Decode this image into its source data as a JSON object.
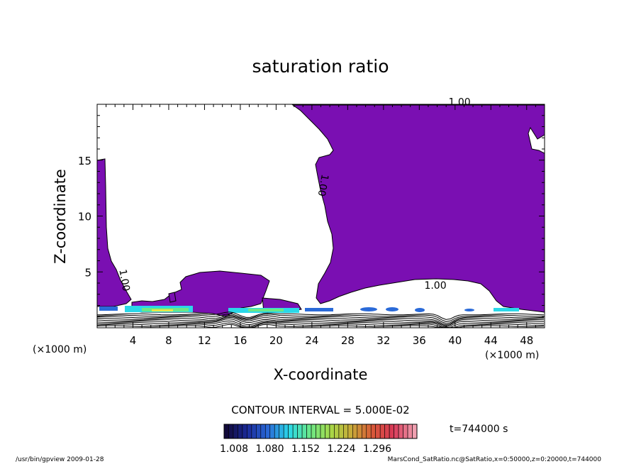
{
  "chart_data": {
    "type": "contour",
    "title": "saturation ratio",
    "xlabel": "X-coordinate",
    "ylabel": "Z-coordinate",
    "x_unit": "(×1000 m)",
    "x_unit_right": "(×1000 m)",
    "y_unit": "(×1000 m)",
    "xlim": [
      0,
      50
    ],
    "ylim": [
      0,
      20
    ],
    "xticks": [
      4,
      8,
      12,
      16,
      20,
      24,
      28,
      32,
      36,
      40,
      44,
      48
    ],
    "yticks": [
      5,
      10,
      15
    ],
    "contour_interval_text": "CONTOUR INTERVAL = 5.000E-02",
    "contour_labels": [
      {
        "text": "1.00",
        "x": 40.5,
        "z": 19.9
      },
      {
        "text": "1.00",
        "x": 24.9,
        "z": 12.8
      },
      {
        "text": "1.00",
        "x": 37.8,
        "z": 3.5
      },
      {
        "text": "1.00",
        "x": 2.7,
        "z": 4.2
      }
    ],
    "colorbar": {
      "ticks": [
        "1.008",
        "1.080",
        "1.152",
        "1.224",
        "1.296"
      ],
      "min": 1.008,
      "max": 1.296,
      "colors": [
        "#120a3a",
        "#1a2a9a",
        "#2a6ad8",
        "#2ad8e8",
        "#6ae888",
        "#a8d848",
        "#c8a838",
        "#d85838",
        "#d83858",
        "#f0a0b0"
      ]
    },
    "time_label": "t=744000 s",
    "series": [
      {
        "name": "1.00",
        "values": [
          1.0
        ]
      }
    ]
  },
  "footer": {
    "left": "/usr/bin/gpview   2009-01-28",
    "right": "MarsCond_SatRatio.nc@SatRatio,x=0:50000,z=0:20000,t=744000"
  },
  "colors": {
    "fill": "#7a0fb2",
    "line": "#000000"
  }
}
